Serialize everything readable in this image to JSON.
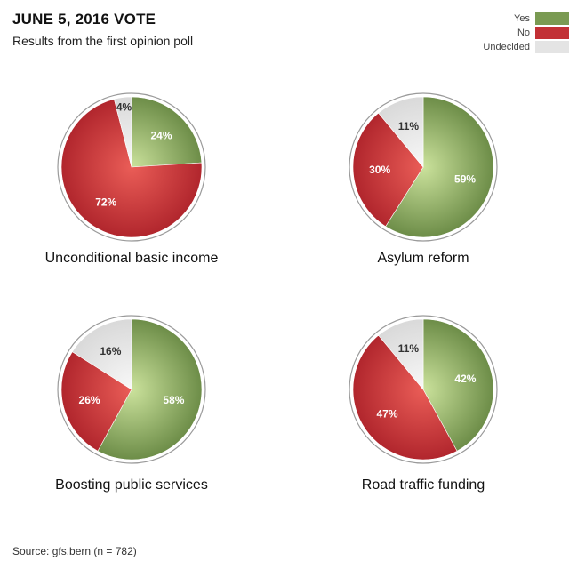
{
  "header": {
    "title": "JUNE 5, 2016 VOTE",
    "subtitle": "Results from the first opinion poll"
  },
  "legend": [
    {
      "label": "Yes",
      "color": "#7a9a52"
    },
    {
      "label": "No",
      "color": "#c23035"
    },
    {
      "label": "Undecided",
      "color": "#e4e4e4"
    }
  ],
  "source": "Source: gfs.bern (n = 782)",
  "chart_data": [
    {
      "type": "pie",
      "title": "Unconditional basic income",
      "slices": [
        {
          "label": "Yes",
          "value": 24,
          "text": "24%"
        },
        {
          "label": "No",
          "value": 72,
          "text": "72%"
        },
        {
          "label": "Undecided",
          "value": 4,
          "text": "4%"
        }
      ]
    },
    {
      "type": "pie",
      "title": "Asylum reform",
      "slices": [
        {
          "label": "Yes",
          "value": 59,
          "text": "59%"
        },
        {
          "label": "No",
          "value": 30,
          "text": "30%"
        },
        {
          "label": "Undecided",
          "value": 11,
          "text": "11%"
        }
      ]
    },
    {
      "type": "pie",
      "title": "Boosting public services",
      "slices": [
        {
          "label": "Yes",
          "value": 58,
          "text": "58%"
        },
        {
          "label": "No",
          "value": 26,
          "text": "26%"
        },
        {
          "label": "Undecided",
          "value": 16,
          "text": "16%"
        }
      ]
    },
    {
      "type": "pie",
      "title": "Road traffic funding",
      "slices": [
        {
          "label": "Yes",
          "value": 42,
          "text": "42%"
        },
        {
          "label": "No",
          "value": 47,
          "text": "47%"
        },
        {
          "label": "Undecided",
          "value": 11,
          "text": "11%"
        }
      ]
    }
  ]
}
